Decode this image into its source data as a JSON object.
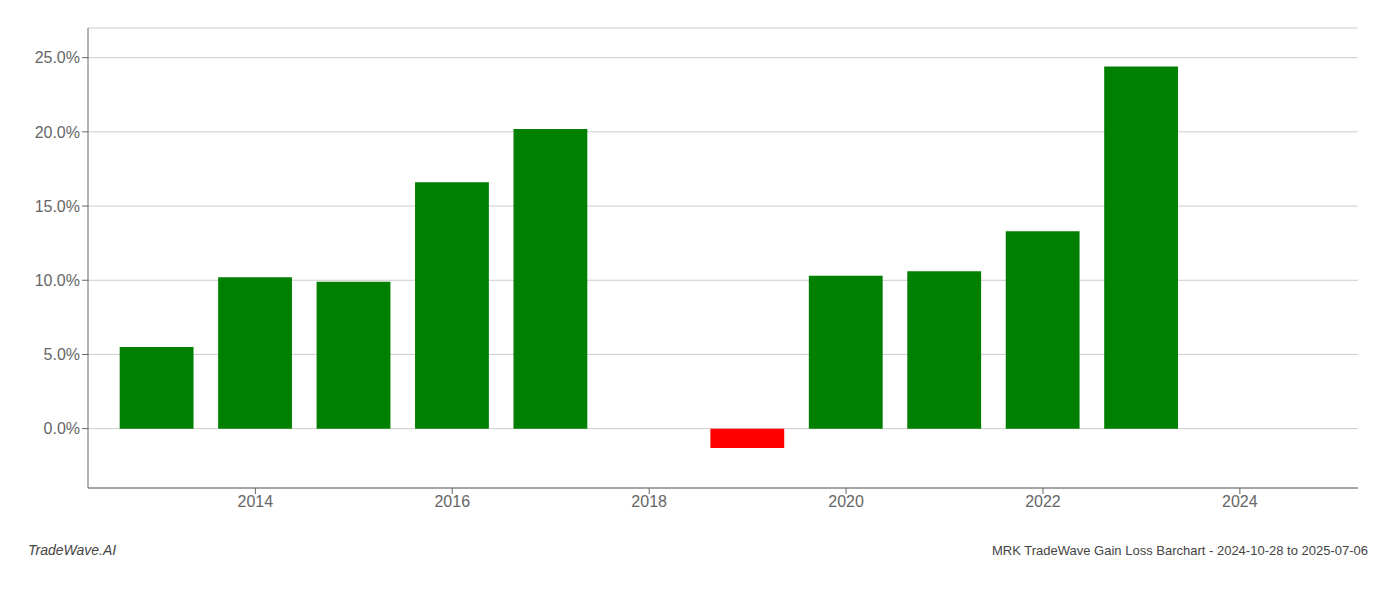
{
  "chart_data": {
    "type": "bar",
    "title": "MRK TradeWave Gain Loss Barchart - 2024-10-28 to 2025-07-06",
    "annotations": [
      "TradeWave.AI"
    ],
    "x": [
      2013,
      2014,
      2015,
      2016,
      2017,
      2019,
      2020,
      2021,
      2022,
      2023
    ],
    "values": [
      0.055,
      0.102,
      0.099,
      0.166,
      0.202,
      -0.013,
      0.103,
      0.106,
      0.133,
      0.244
    ],
    "colors": [
      "#008000",
      "#008000",
      "#008000",
      "#008000",
      "#008000",
      "#ff0000",
      "#008000",
      "#008000",
      "#008000",
      "#008000"
    ],
    "xlim": [
      2012.3,
      2025.2
    ],
    "xticks": [
      2014,
      2016,
      2018,
      2020,
      2022,
      2024
    ],
    "ylim": [
      -0.04,
      0.27
    ],
    "yticks": [
      {
        "value": 0.0,
        "label": "0.0%"
      },
      {
        "value": 0.05,
        "label": "5.0%"
      },
      {
        "value": 0.1,
        "label": "10.0%"
      },
      {
        "value": 0.15,
        "label": "15.0%"
      },
      {
        "value": 0.2,
        "label": "20.0%"
      },
      {
        "value": 0.25,
        "label": "25.0%"
      }
    ],
    "grid": "y"
  }
}
